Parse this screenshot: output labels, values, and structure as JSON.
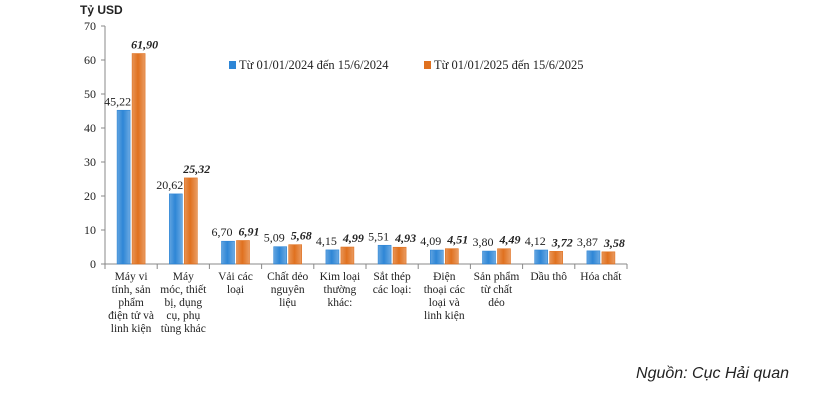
{
  "chart_data": {
    "type": "bar",
    "ylabel": "Tỷ USD",
    "ylim": [
      0,
      70
    ],
    "yticks": [
      "0",
      "10",
      "20",
      "30",
      "40",
      "50",
      "60",
      "70"
    ],
    "categories": [
      [
        "Máy vi",
        "tính, sản",
        "phẩm",
        "điện tử và",
        "linh kiện"
      ],
      [
        "Máy",
        "móc, thiết",
        "bị, dụng",
        "cụ, phụ",
        "tùng khác"
      ],
      [
        "Vải các",
        "loại"
      ],
      [
        "Chất dẻo",
        "nguyên",
        "liệu"
      ],
      [
        "Kim loại",
        "thường",
        "khác:"
      ],
      [
        "Sắt thép",
        "các loại:"
      ],
      [
        "Điện",
        "thoại các",
        "loại và",
        "linh kiện"
      ],
      [
        "Sản phẩm",
        "từ chất",
        "dẻo"
      ],
      [
        "Dầu thô"
      ],
      [
        "Hóa chất"
      ]
    ],
    "series": [
      {
        "name": "Từ 01/01/2024 đến 15/6/2024",
        "color": "#2e86d6",
        "values": [
          45.22,
          20.62,
          6.7,
          5.09,
          4.15,
          5.51,
          4.09,
          3.8,
          4.12,
          3.87
        ],
        "labels": [
          "45,22",
          "20,62",
          "6,70",
          "5,09",
          "4,15",
          "5,51",
          "4,09",
          "3,80",
          "4,12",
          "3,87"
        ]
      },
      {
        "name": "Từ 01/01/2025 đến 15/6/2025",
        "color": "#e0711f",
        "values": [
          61.9,
          25.32,
          6.91,
          5.68,
          4.99,
          4.93,
          4.51,
          4.49,
          3.72,
          3.58
        ],
        "labels": [
          "61,90",
          "25,32",
          "6,91",
          "5,68",
          "4,99",
          "4,93",
          "4,51",
          "4,49",
          "3,72",
          "3,58"
        ]
      }
    ],
    "legend_position": "top-right",
    "grid": false
  },
  "source": "Nguồn: Cục Hải quan"
}
